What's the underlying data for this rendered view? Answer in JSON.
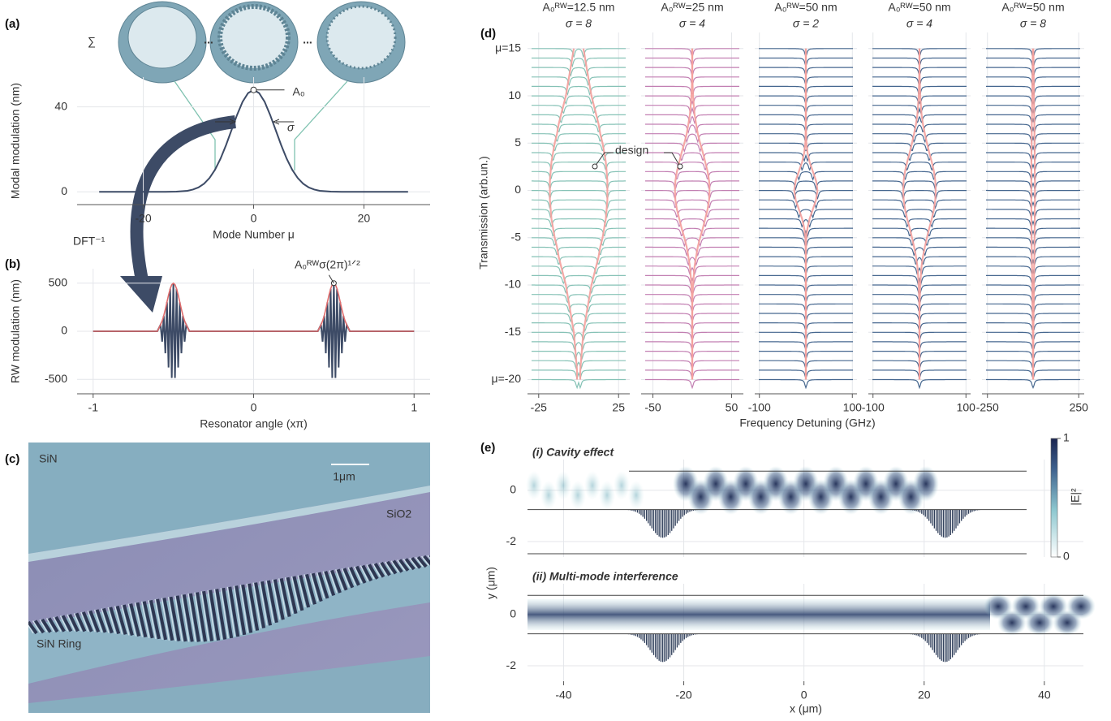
{
  "panel_labels": [
    "(a)",
    "(b)",
    "(c)",
    "(d)",
    "(e)"
  ],
  "chart_data": [
    {
      "type": "line",
      "x_label": "Mode Number μ",
      "y_label": "Modal modulation (nm)",
      "annotations": {
        "peak": "A₀",
        "width": "σ",
        "transform": "DFT⁻¹",
        "sum": "∑",
        "ellipsis": [
          "...",
          "..."
        ]
      },
      "x": [
        -28,
        -24,
        -20,
        -16,
        -14,
        -12,
        -11,
        -10,
        -9,
        -8,
        -7,
        -6,
        -5,
        -4,
        -3,
        -2,
        -1,
        0,
        1,
        2,
        3,
        4,
        5,
        6,
        7,
        8,
        9,
        10,
        11,
        12,
        14,
        16,
        20,
        24,
        28
      ],
      "series": [
        {
          "color": "#3d4b66",
          "values": [
            0,
            0,
            0,
            0,
            0.1,
            0.5,
            1.1,
            2.1,
            3.8,
            6.5,
            10.4,
            15.6,
            22,
            29.1,
            36.2,
            42.4,
            46.5,
            48,
            46.5,
            42.4,
            36.2,
            29.1,
            22,
            15.6,
            10.4,
            6.5,
            3.8,
            2.1,
            1.1,
            0.5,
            0.1,
            0,
            0,
            0,
            0
          ]
        }
      ],
      "xlim": [
        -32,
        32
      ],
      "xticks": [
        -20,
        0,
        20
      ],
      "ylim": [
        -6,
        54
      ],
      "yticks": [
        0,
        40
      ],
      "grid": true
    },
    {
      "type": "line",
      "x_label": "Resonator angle (xπ)",
      "y_label": "RW modulation (nm)",
      "annotations": {
        "peak": "A₀ᴿᵂσ(2π)¹ᐟ²"
      },
      "x": [
        -1,
        -0.6,
        -0.58,
        -0.57,
        -0.56,
        -0.55,
        -0.54,
        -0.53,
        -0.52,
        -0.51,
        -0.5,
        -0.49,
        -0.48,
        -0.47,
        -0.46,
        -0.45,
        -0.44,
        -0.43,
        -0.42,
        -0.4,
        0.4,
        0.42,
        0.43,
        0.44,
        0.45,
        0.46,
        0.47,
        0.48,
        0.49,
        0.5,
        0.51,
        0.52,
        0.53,
        0.54,
        0.55,
        0.56,
        0.57,
        0.58,
        0.6,
        1
      ],
      "series": [
        {
          "color": "#3d4b66",
          "values": [
            0,
            0,
            68,
            -108,
            162,
            -229,
            303,
            -377,
            441,
            -485,
            500,
            -485,
            441,
            -377,
            303,
            -229,
            162,
            -108,
            68,
            0,
            0,
            68,
            -108,
            162,
            -229,
            303,
            -377,
            441,
            -485,
            500,
            -485,
            441,
            -377,
            303,
            -229,
            162,
            -108,
            68,
            0,
            0
          ]
        },
        {
          "color": "#e06c6c",
          "values": [
            0,
            0,
            68,
            108,
            162,
            229,
            303,
            377,
            441,
            485,
            500,
            485,
            441,
            377,
            303,
            229,
            162,
            108,
            68,
            0,
            0,
            68,
            108,
            162,
            229,
            303,
            377,
            441,
            485,
            500,
            485,
            441,
            377,
            303,
            229,
            162,
            108,
            68,
            0,
            0
          ]
        }
      ],
      "xlim": [
        -1.1,
        1.1
      ],
      "xticks": [
        -1,
        0,
        1
      ],
      "ylim": [
        -650,
        650
      ],
      "yticks": [
        -500,
        0,
        500
      ],
      "grid": true
    },
    {
      "type": "spectra",
      "x_label": "Frequency Detuning (GHz)",
      "y_label": "Transmission (arb.un.)",
      "annotation": "design",
      "design_color": "#f4a09c",
      "modes": [
        -20,
        -19,
        -18,
        -17,
        -16,
        -15,
        -14,
        -13,
        -12,
        -11,
        -10,
        -9,
        -8,
        -7,
        -6,
        -5,
        -4,
        -3,
        -2,
        -1,
        0,
        1,
        2,
        3,
        4,
        5,
        6,
        7,
        8,
        9,
        10,
        11,
        12,
        13,
        14,
        15
      ],
      "ylim": [
        -21.5,
        16.7
      ],
      "yticks": [
        {
          "value": -20,
          "label": "μ=-20"
        },
        -15,
        -10,
        -5,
        0,
        5,
        10,
        {
          "value": 15,
          "label": "μ=15"
        }
      ],
      "grid": true,
      "panels": [
        {
          "title": [
            "A₀ᴿᵂ=12.5 nm",
            "σ = 8"
          ],
          "color": "#86c2b6",
          "xlim": [
            -32,
            32
          ],
          "xticks": [
            -25,
            25
          ],
          "splitting": [
            2,
            2,
            3,
            4,
            5,
            6,
            8,
            10,
            12,
            14,
            16,
            19,
            22,
            25,
            27,
            30,
            32,
            34,
            35,
            36,
            36,
            36,
            35,
            34,
            32,
            30,
            27,
            25,
            22,
            19,
            16,
            14,
            12,
            10,
            8,
            6
          ]
        },
        {
          "title": [
            "A₀ᴿᵂ=25 nm",
            "σ = 4"
          ],
          "color": "#c27fb2",
          "xlim": [
            -65,
            65
          ],
          "xticks": [
            -50,
            50
          ],
          "splitting": [
            0,
            0,
            0,
            0,
            0,
            0,
            0,
            0,
            0,
            1,
            2,
            4,
            6,
            10,
            14,
            20,
            27,
            33,
            39,
            43,
            44,
            43,
            39,
            33,
            27,
            20,
            14,
            10,
            6,
            4,
            2,
            1,
            0,
            0,
            0,
            0
          ]
        },
        {
          "title": [
            "A₀ᴿᵂ=50 nm",
            "σ = 2"
          ],
          "color": "#46678f",
          "xlim": [
            -110,
            110
          ],
          "xticks": [
            -100,
            100
          ],
          "splitting": [
            0,
            0,
            0,
            0,
            0,
            0,
            0,
            0,
            0,
            0,
            0,
            0,
            0,
            0,
            1,
            2,
            7,
            16,
            30,
            44,
            50,
            44,
            30,
            16,
            7,
            2,
            1,
            0,
            0,
            0,
            0,
            0,
            0,
            0,
            0,
            0
          ]
        },
        {
          "title": [
            "A₀ᴿᵂ=50 nm",
            "σ = 4"
          ],
          "color": "#46678f",
          "xlim": [
            -110,
            110
          ],
          "xticks": [
            -100,
            100
          ],
          "splitting": [
            0,
            0,
            0,
            0,
            0,
            0,
            0,
            0,
            1,
            2,
            3,
            6,
            9,
            15,
            23,
            32,
            42,
            53,
            62,
            68,
            70,
            68,
            62,
            53,
            42,
            32,
            23,
            15,
            9,
            6,
            3,
            2,
            1,
            0,
            0,
            0
          ]
        },
        {
          "title": [
            "A₀ᴿᵂ=50 nm",
            "σ = 8"
          ],
          "color": "#46678f",
          "xlim": [
            -280,
            280
          ],
          "xticks": [
            -250,
            250
          ],
          "splitting": [
            1,
            1,
            2,
            2,
            3,
            3,
            4,
            5,
            7,
            8,
            9,
            11,
            12,
            14,
            15,
            16,
            18,
            19,
            19,
            20,
            20,
            20,
            19,
            19,
            18,
            16,
            15,
            14,
            12,
            11,
            9,
            8,
            7,
            5,
            4,
            3
          ]
        }
      ]
    },
    {
      "type": "heatmap",
      "x_label": "x (μm)",
      "y_label": "y (μm)",
      "panels": [
        {
          "title": "(i) Cavity effect"
        },
        {
          "title": "(ii) Multi-mode interference"
        }
      ],
      "xlim": [
        -46,
        46.5
      ],
      "xticks": [
        -40,
        -20,
        0,
        20,
        40
      ],
      "ylim": [
        -2.6,
        1.2
      ],
      "yticks": [
        -2,
        0
      ],
      "grid": true,
      "colorbar": {
        "label": "|E|²",
        "lim": [
          0,
          1
        ],
        "ticks": [
          0,
          1
        ]
      }
    }
  ],
  "image": {
    "labels": [
      "SiN",
      "SiO2",
      "SiN Ring"
    ],
    "scale_bar": "1μm"
  }
}
